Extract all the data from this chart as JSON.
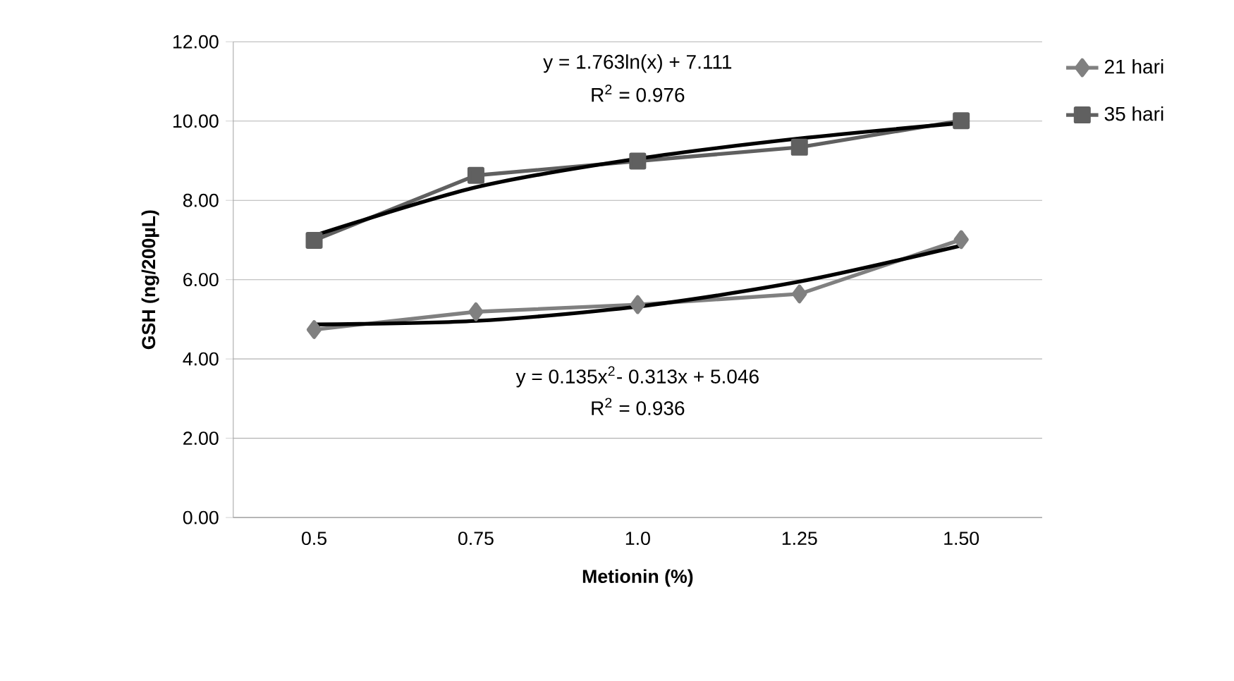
{
  "chart_data": {
    "type": "line",
    "xlabel": "Metionin (%)",
    "ylabel": "GSH (ng/200µL)",
    "categories": [
      "0.5",
      "0.75",
      "1.0",
      "1.25",
      "1.50"
    ],
    "series": [
      {
        "name": "21 hari",
        "color": "#808080",
        "marker": "diamond",
        "values": [
          4.74,
          5.19,
          5.37,
          5.64,
          7.01
        ]
      },
      {
        "name": "35 hari",
        "color": "#606060",
        "marker": "square",
        "values": [
          6.99,
          8.63,
          8.99,
          9.34,
          10.01
        ]
      },
      {
        "color": "#000000",
        "marker": "none",
        "x": [
          "0.5",
          "0.75",
          "1.0",
          "1.25",
          "1.50"
        ],
        "values": [
          7.11,
          8.33,
          9.05,
          9.56,
          9.95
        ]
      },
      {
        "color": "#000000",
        "marker": "none",
        "x": [
          "0.5",
          "0.75",
          "1.0",
          "1.25",
          "1.50"
        ],
        "values": [
          4.87,
          4.96,
          5.32,
          5.95,
          6.86
        ]
      }
    ],
    "ylim": [
      0,
      12
    ],
    "yticks": [
      {
        "value": 0,
        "label": "0.00"
      },
      {
        "value": 2,
        "label": "2.00"
      },
      {
        "value": 4,
        "label": "4.00"
      },
      {
        "value": 6,
        "label": "6.00"
      },
      {
        "value": 8,
        "label": "8.00"
      },
      {
        "value": 10,
        "label": "10.00"
      },
      {
        "value": 12,
        "label": "12.00"
      }
    ],
    "grid": "y",
    "legend": "right",
    "line_style": "solid",
    "annotations": [
      "y = 1.763ln(x) + 7.111",
      "R$^{2}$ = 0.976",
      "y = 0.135x$^{2}$- 0.313x + 5.046",
      "R$^{2}$ = 0.936"
    ]
  }
}
